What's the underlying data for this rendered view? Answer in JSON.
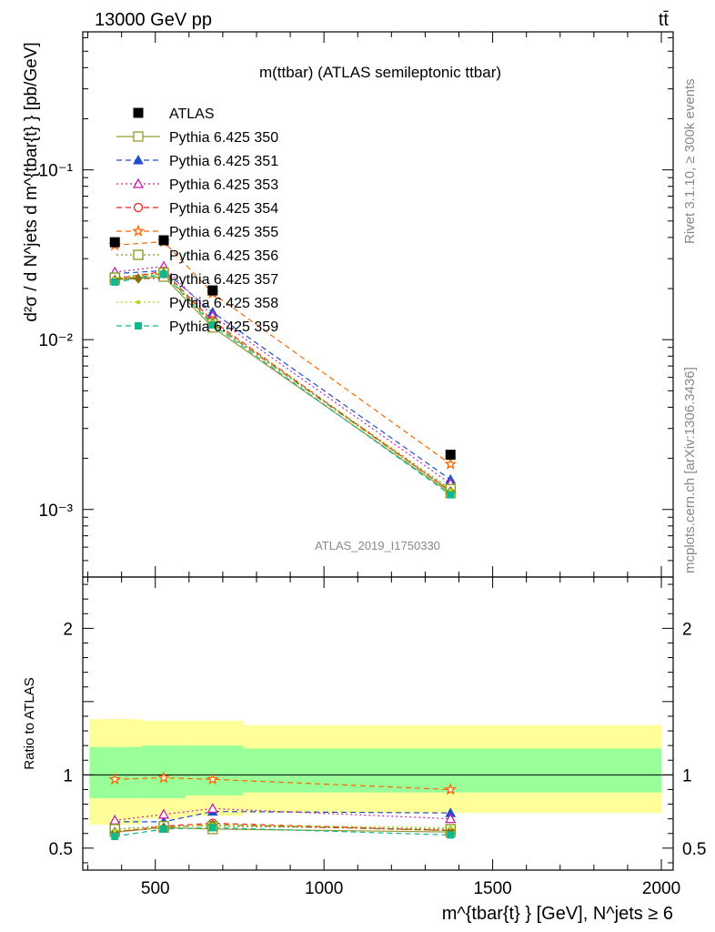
{
  "header": {
    "left": "13000 GeV pp",
    "right": "tt̄"
  },
  "side_labels": {
    "rivet": "Rivet 3.1.10, ≥ 300k events",
    "source": "mcplots.cern.ch [arXiv:1306.3436]"
  },
  "chart_data": [
    {
      "type": "line",
      "panel": "main",
      "title": "m(ttbar) (ATLAS semileptonic ttbar)",
      "watermark": "ATLAS_2019_I1750330",
      "ylabel": "d²σ / d N^jets d m^{tbar{t} } [pb/GeV]",
      "yscale": "log",
      "ylim": [
        0.0004,
        0.65
      ],
      "xlim": [
        285,
        2035
      ],
      "y_tick_labels": [
        "10⁻³",
        "10⁻²",
        "10⁻¹"
      ],
      "x": [
        380,
        525,
        670,
        1375
      ],
      "data": {
        "name": "ATLAS",
        "values": [
          0.0375,
          0.0385,
          0.0195,
          0.0021
        ],
        "color": "#000000",
        "marker": "filled-square"
      },
      "series": [
        {
          "name": "Pythia 6.425 350",
          "values": [
            0.0225,
            0.0235,
            0.0118,
            0.00125
          ],
          "color": "#999933",
          "marker": "open-square",
          "dash": "solid"
        },
        {
          "name": "Pythia 6.425 351",
          "values": [
            0.0245,
            0.0255,
            0.0145,
            0.0015
          ],
          "color": "#1f4ecb",
          "marker": "filled-triangle",
          "dash": "dashed"
        },
        {
          "name": "Pythia 6.425 353",
          "values": [
            0.025,
            0.027,
            0.0138,
            0.00142
          ],
          "color": "#cc1fa8",
          "marker": "open-triangle",
          "dash": "dotted"
        },
        {
          "name": "Pythia 6.425 354",
          "values": [
            0.0228,
            0.0252,
            0.0129,
            0.00128
          ],
          "color": "#ee1f1f",
          "marker": "open-circle",
          "dash": "dashed"
        },
        {
          "name": "Pythia 6.425 355",
          "values": [
            0.036,
            0.0378,
            0.0188,
            0.00185
          ],
          "color": "#ff6600",
          "marker": "open-star",
          "dash": "dashed"
        },
        {
          "name": "Pythia 6.425 356",
          "values": [
            0.0232,
            0.0248,
            0.0125,
            0.00132
          ],
          "color": "#7a9a14",
          "marker": "open-square",
          "dash": "dotted"
        },
        {
          "name": "Pythia 6.425 357",
          "values": [
            0.0225,
            0.0245,
            0.0125,
            0.00128
          ],
          "color": "#8b6a10",
          "marker": "filled-diamond",
          "dash": "dashdot"
        },
        {
          "name": "Pythia 6.425 358",
          "values": [
            0.0228,
            0.0245,
            0.0127,
            0.0013
          ],
          "color": "#b5d91f",
          "marker": "dot",
          "dash": "dotted"
        },
        {
          "name": "Pythia 6.425 359",
          "values": [
            0.0218,
            0.0243,
            0.0122,
            0.00122
          ],
          "color": "#11b78f",
          "marker": "filled-square-small",
          "dash": "dashed"
        }
      ]
    },
    {
      "type": "line",
      "panel": "ratio",
      "ylabel": "Ratio to ATLAS",
      "xlabel": "m^{tbar{t} } [GeV], N^jets ≥ 6",
      "ylim": [
        0.35,
        2.35
      ],
      "xlim": [
        285,
        2035
      ],
      "x_ticks": [
        500,
        1000,
        1500,
        2000
      ],
      "y_ticks": [
        0.5,
        1,
        2
      ],
      "bands": {
        "bin_edges": [
          305,
          460,
          590,
          760,
          2000
        ],
        "stat": [
          [
            0.84,
            1.19
          ],
          [
            0.84,
            1.2
          ],
          [
            0.86,
            1.2
          ],
          [
            0.88,
            1.18
          ]
        ],
        "total": [
          [
            0.66,
            1.38
          ],
          [
            0.7,
            1.37
          ],
          [
            0.72,
            1.37
          ],
          [
            0.74,
            1.34
          ]
        ],
        "stat_color": "#99ff99",
        "total_color": "#ffff99"
      },
      "x": [
        380,
        525,
        670,
        1375
      ],
      "series": [
        {
          "name": "Pythia 6.425 350",
          "values": [
            0.61,
            0.64,
            0.63,
            0.61
          ]
        },
        {
          "name": "Pythia 6.425 351",
          "values": [
            0.68,
            0.68,
            0.75,
            0.74
          ]
        },
        {
          "name": "Pythia 6.425 353",
          "values": [
            0.69,
            0.73,
            0.77,
            0.7
          ]
        },
        {
          "name": "Pythia 6.425 354",
          "values": [
            0.61,
            0.65,
            0.67,
            0.62
          ]
        },
        {
          "name": "Pythia 6.425 355",
          "values": [
            0.97,
            0.98,
            0.97,
            0.9
          ]
        },
        {
          "name": "Pythia 6.425 356",
          "values": [
            0.63,
            0.65,
            0.65,
            0.63
          ]
        },
        {
          "name": "Pythia 6.425 357",
          "values": [
            0.61,
            0.64,
            0.66,
            0.62
          ]
        },
        {
          "name": "Pythia 6.425 358",
          "values": [
            0.62,
            0.64,
            0.66,
            0.64
          ]
        },
        {
          "name": "Pythia 6.425 359",
          "values": [
            0.58,
            0.63,
            0.64,
            0.59
          ]
        }
      ]
    }
  ]
}
